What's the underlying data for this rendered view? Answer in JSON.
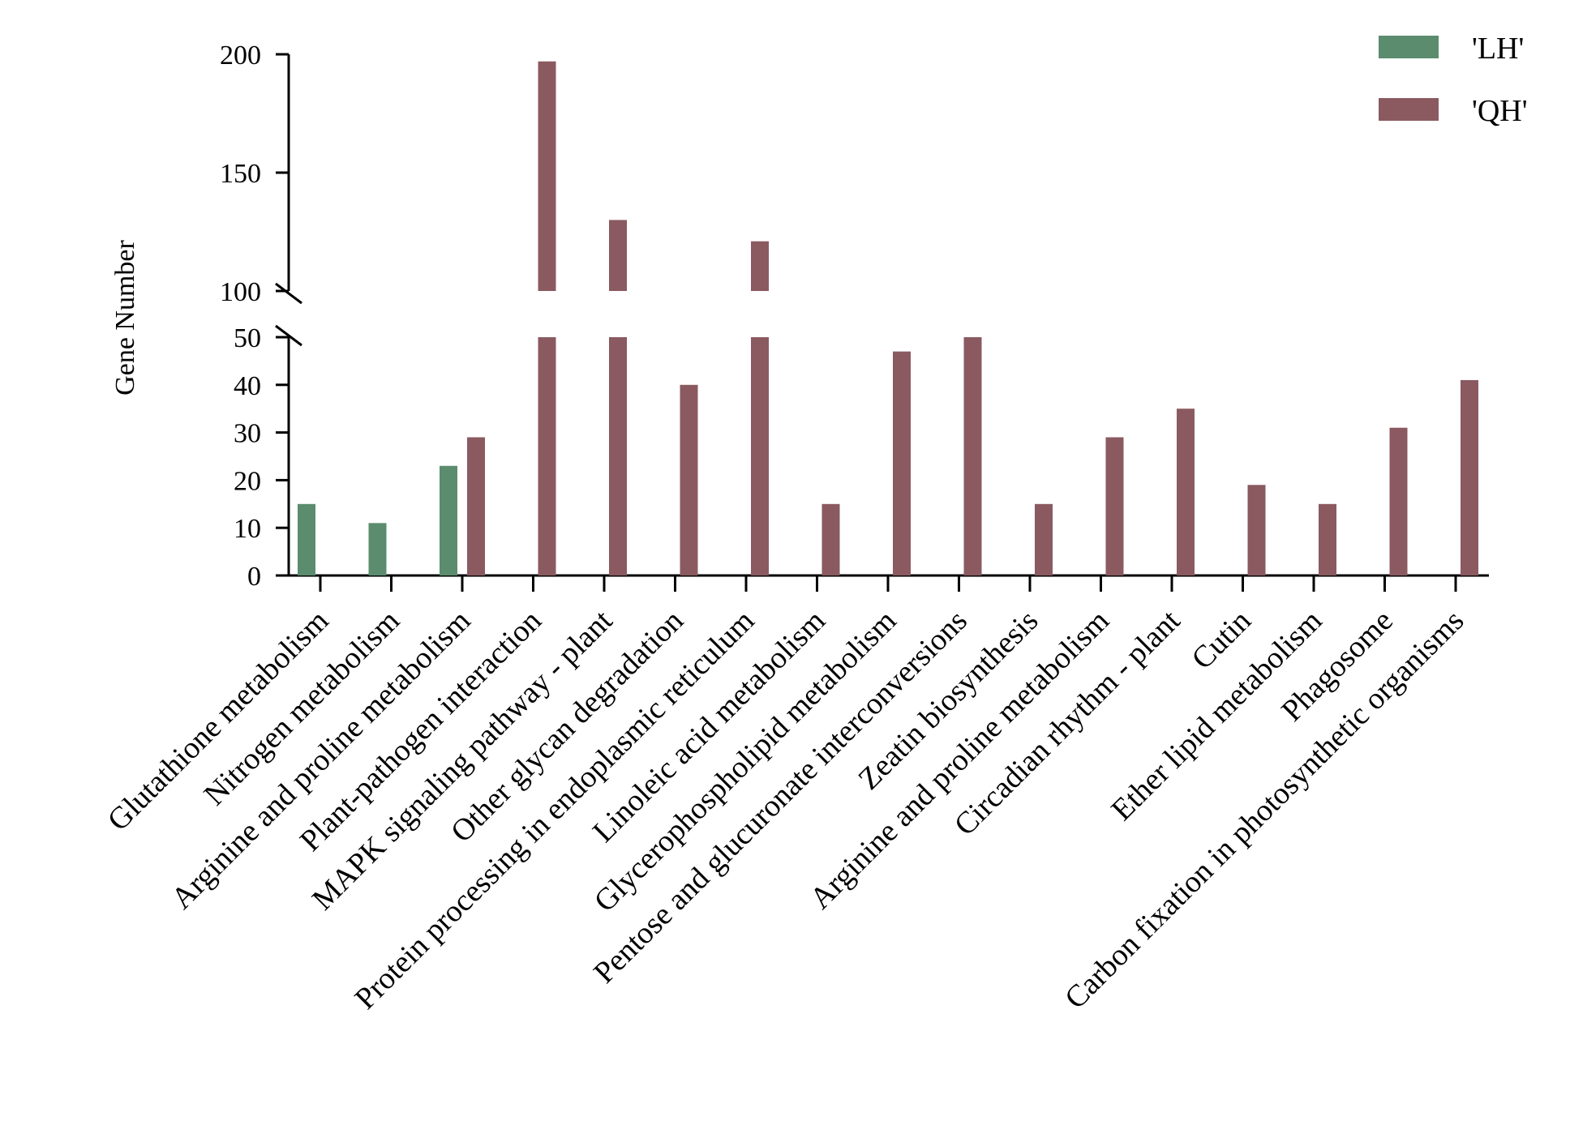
{
  "chart_data": {
    "type": "bar",
    "title": "",
    "xlabel": "",
    "ylabel": "Gene Number",
    "axis_break": {
      "from": 50,
      "to": 100
    },
    "ylim": [
      0,
      200
    ],
    "yticks_lower": [
      "0",
      "10",
      "20",
      "30",
      "40",
      "50"
    ],
    "yticks_upper": [
      "100",
      "150",
      "200"
    ],
    "legend_position": "top-right",
    "categories": [
      "Glutathione metabolism",
      "Nitrogen metabolism",
      "Arginine and proline metabolism",
      "Plant-pathogen interaction",
      "MAPK signaling pathway - plant",
      "Other glycan degradation",
      "Protein processing in endoplasmic reticulum",
      "Linoleic acid metabolism",
      "Glycerophospholipid metabolism",
      "Pentose and glucuronate interconversions",
      "Zeatin biosynthesis",
      "Arginine and proline metabolism",
      "Circadian rhythm - plant",
      "Cutin",
      "Ether lipid metabolism",
      "Phagosome",
      "Carbon fixation in photosynthetic organisms"
    ],
    "series": [
      {
        "name": "'LH'",
        "color": "#5b8c6e",
        "values": [
          15,
          11,
          23,
          null,
          null,
          null,
          null,
          null,
          null,
          null,
          null,
          null,
          null,
          null,
          null,
          null,
          null
        ]
      },
      {
        "name": "'QH'",
        "color": "#8a5a60",
        "values": [
          null,
          null,
          29,
          197,
          130,
          40,
          121,
          15,
          47,
          50,
          15,
          29,
          35,
          19,
          15,
          31,
          41
        ]
      }
    ]
  }
}
